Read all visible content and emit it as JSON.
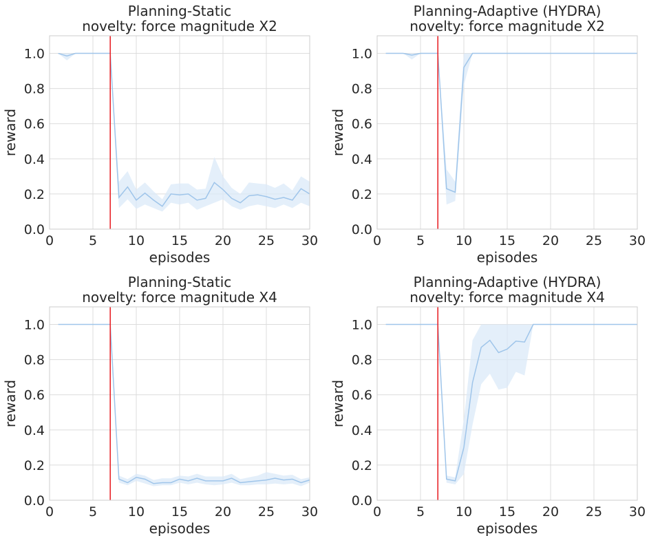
{
  "chart_data": [
    {
      "type": "line",
      "title": "Planning-Static",
      "subtitle": "novelty: force magnitude X2",
      "xlabel": "episodes",
      "ylabel": "reward",
      "xlim": [
        0,
        30
      ],
      "ylim": [
        0,
        1.1
      ],
      "xticks": [
        "0",
        "5",
        "10",
        "15",
        "20",
        "25",
        "30"
      ],
      "yticks": [
        "0.0",
        "0.2",
        "0.4",
        "0.6",
        "0.8",
        "1.0"
      ],
      "grid": true,
      "line_color": "#9fc5ea",
      "band_color": "#dbe9f8",
      "vline": {
        "x": 7,
        "color": "#e8262b"
      },
      "series": [
        {
          "x": [
            1,
            2,
            3,
            4,
            5,
            6,
            7,
            8,
            9,
            10,
            11,
            12,
            13,
            14,
            15,
            16,
            17,
            18,
            19,
            20,
            21,
            22,
            23,
            24,
            25,
            26,
            27,
            28,
            29,
            30
          ],
          "values": [
            1.0,
            0.985,
            1.0,
            1.0,
            1.0,
            1.0,
            1.0,
            0.18,
            0.24,
            0.165,
            0.205,
            0.165,
            0.13,
            0.2,
            0.195,
            0.2,
            0.165,
            0.175,
            0.265,
            0.225,
            0.175,
            0.15,
            0.19,
            0.195,
            0.185,
            0.17,
            0.18,
            0.165,
            0.23,
            0.2
          ],
          "lower": [
            1.0,
            0.96,
            1.0,
            1.0,
            1.0,
            1.0,
            1.0,
            0.12,
            0.17,
            0.115,
            0.14,
            0.12,
            0.1,
            0.15,
            0.14,
            0.15,
            0.11,
            0.13,
            0.15,
            0.17,
            0.13,
            0.11,
            0.13,
            0.14,
            0.13,
            0.12,
            0.14,
            0.12,
            0.15,
            0.13
          ],
          "upper": [
            1.0,
            1.0,
            1.0,
            1.0,
            1.0,
            1.0,
            1.0,
            0.27,
            0.33,
            0.225,
            0.265,
            0.215,
            0.17,
            0.255,
            0.26,
            0.26,
            0.225,
            0.23,
            0.41,
            0.3,
            0.235,
            0.2,
            0.265,
            0.26,
            0.255,
            0.235,
            0.26,
            0.22,
            0.3,
            0.27
          ]
        }
      ]
    },
    {
      "type": "line",
      "title": "Planning-Adaptive (HYDRA)",
      "subtitle": "novelty: force magnitude X2",
      "xlabel": "episodes",
      "ylabel": "reward",
      "xlim": [
        0,
        30
      ],
      "ylim": [
        0,
        1.1
      ],
      "xticks": [
        "0",
        "5",
        "10",
        "15",
        "20",
        "25",
        "30"
      ],
      "yticks": [
        "0.0",
        "0.2",
        "0.4",
        "0.6",
        "0.8",
        "1.0"
      ],
      "grid": true,
      "line_color": "#9fc5ea",
      "band_color": "#dbe9f8",
      "vline": {
        "x": 7,
        "color": "#e8262b"
      },
      "series": [
        {
          "x": [
            1,
            2,
            3,
            4,
            5,
            6,
            7,
            8,
            9,
            10,
            11,
            12,
            13,
            14,
            15,
            16,
            17,
            18,
            19,
            20,
            21,
            22,
            23,
            24,
            25,
            26,
            27,
            28,
            29,
            30
          ],
          "values": [
            1.0,
            1.0,
            1.0,
            0.99,
            1.0,
            1.0,
            1.0,
            0.23,
            0.21,
            0.92,
            1.0,
            1.0,
            1.0,
            1.0,
            1.0,
            1.0,
            1.0,
            1.0,
            1.0,
            1.0,
            1.0,
            1.0,
            1.0,
            1.0,
            1.0,
            1.0,
            1.0,
            1.0,
            1.0,
            1.0
          ],
          "lower": [
            1.0,
            1.0,
            1.0,
            0.965,
            1.0,
            1.0,
            1.0,
            0.14,
            0.16,
            0.82,
            1.0,
            1.0,
            1.0,
            1.0,
            1.0,
            1.0,
            1.0,
            1.0,
            1.0,
            1.0,
            1.0,
            1.0,
            1.0,
            1.0,
            1.0,
            1.0,
            1.0,
            1.0,
            1.0,
            1.0
          ],
          "upper": [
            1.0,
            1.0,
            1.0,
            1.0,
            1.0,
            1.0,
            1.0,
            0.34,
            0.27,
            1.0,
            1.0,
            1.0,
            1.0,
            1.0,
            1.0,
            1.0,
            1.0,
            1.0,
            1.0,
            1.0,
            1.0,
            1.0,
            1.0,
            1.0,
            1.0,
            1.0,
            1.0,
            1.0,
            1.0,
            1.0
          ]
        }
      ]
    },
    {
      "type": "line",
      "title": "Planning-Static",
      "subtitle": "novelty: force magnitude X4",
      "xlabel": "episodes",
      "ylabel": "reward",
      "xlim": [
        0,
        30
      ],
      "ylim": [
        0,
        1.1
      ],
      "xticks": [
        "0",
        "5",
        "10",
        "15",
        "20",
        "25",
        "30"
      ],
      "yticks": [
        "0.0",
        "0.2",
        "0.4",
        "0.6",
        "0.8",
        "1.0"
      ],
      "grid": true,
      "line_color": "#9fc5ea",
      "band_color": "#dbe9f8",
      "vline": {
        "x": 7,
        "color": "#e8262b"
      },
      "series": [
        {
          "x": [
            1,
            2,
            3,
            4,
            5,
            6,
            7,
            8,
            9,
            10,
            11,
            12,
            13,
            14,
            15,
            16,
            17,
            18,
            19,
            20,
            21,
            22,
            23,
            24,
            25,
            26,
            27,
            28,
            29,
            30
          ],
          "values": [
            1.0,
            1.0,
            1.0,
            1.0,
            1.0,
            1.0,
            1.0,
            0.12,
            0.1,
            0.13,
            0.12,
            0.095,
            0.1,
            0.1,
            0.12,
            0.11,
            0.125,
            0.11,
            0.11,
            0.11,
            0.125,
            0.1,
            0.105,
            0.11,
            0.115,
            0.125,
            0.115,
            0.12,
            0.1,
            0.115
          ],
          "lower": [
            1.0,
            1.0,
            1.0,
            1.0,
            1.0,
            1.0,
            1.0,
            0.1,
            0.085,
            0.11,
            0.095,
            0.08,
            0.085,
            0.085,
            0.1,
            0.09,
            0.1,
            0.09,
            0.085,
            0.09,
            0.1,
            0.085,
            0.085,
            0.09,
            0.09,
            0.095,
            0.09,
            0.095,
            0.08,
            0.1
          ],
          "upper": [
            1.0,
            1.0,
            1.0,
            1.0,
            1.0,
            1.0,
            1.0,
            0.14,
            0.12,
            0.15,
            0.14,
            0.115,
            0.125,
            0.125,
            0.14,
            0.135,
            0.15,
            0.135,
            0.135,
            0.135,
            0.15,
            0.12,
            0.13,
            0.14,
            0.16,
            0.15,
            0.14,
            0.145,
            0.12,
            0.13
          ]
        }
      ]
    },
    {
      "type": "line",
      "title": "Planning-Adaptive (HYDRA)",
      "subtitle": "novelty: force magnitude X4",
      "xlabel": "episodes",
      "ylabel": "reward",
      "xlim": [
        0,
        30
      ],
      "ylim": [
        0,
        1.1
      ],
      "xticks": [
        "0",
        "5",
        "10",
        "15",
        "20",
        "25",
        "30"
      ],
      "yticks": [
        "0.0",
        "0.2",
        "0.4",
        "0.6",
        "0.8",
        "1.0"
      ],
      "grid": true,
      "line_color": "#9fc5ea",
      "band_color": "#dbe9f8",
      "vline": {
        "x": 7,
        "color": "#e8262b"
      },
      "series": [
        {
          "x": [
            1,
            2,
            3,
            4,
            5,
            6,
            7,
            8,
            9,
            10,
            11,
            12,
            13,
            14,
            15,
            16,
            17,
            18,
            19,
            20,
            21,
            22,
            23,
            24,
            25,
            26,
            27,
            28,
            29,
            30
          ],
          "values": [
            1.0,
            1.0,
            1.0,
            1.0,
            1.0,
            1.0,
            1.0,
            0.12,
            0.11,
            0.3,
            0.67,
            0.87,
            0.91,
            0.84,
            0.86,
            0.905,
            0.9,
            1.0,
            1.0,
            1.0,
            1.0,
            1.0,
            1.0,
            1.0,
            1.0,
            1.0,
            1.0,
            1.0,
            1.0,
            1.0
          ],
          "lower": [
            1.0,
            1.0,
            1.0,
            1.0,
            1.0,
            1.0,
            1.0,
            0.1,
            0.09,
            0.15,
            0.43,
            0.66,
            0.72,
            0.63,
            0.64,
            0.73,
            0.71,
            1.0,
            1.0,
            1.0,
            1.0,
            1.0,
            1.0,
            1.0,
            1.0,
            1.0,
            1.0,
            1.0,
            1.0,
            1.0
          ],
          "upper": [
            1.0,
            1.0,
            1.0,
            1.0,
            1.0,
            1.0,
            1.0,
            0.14,
            0.13,
            0.46,
            0.91,
            1.0,
            1.0,
            1.0,
            1.0,
            1.0,
            1.0,
            1.0,
            1.0,
            1.0,
            1.0,
            1.0,
            1.0,
            1.0,
            1.0,
            1.0,
            1.0,
            1.0,
            1.0,
            1.0
          ]
        }
      ]
    }
  ]
}
